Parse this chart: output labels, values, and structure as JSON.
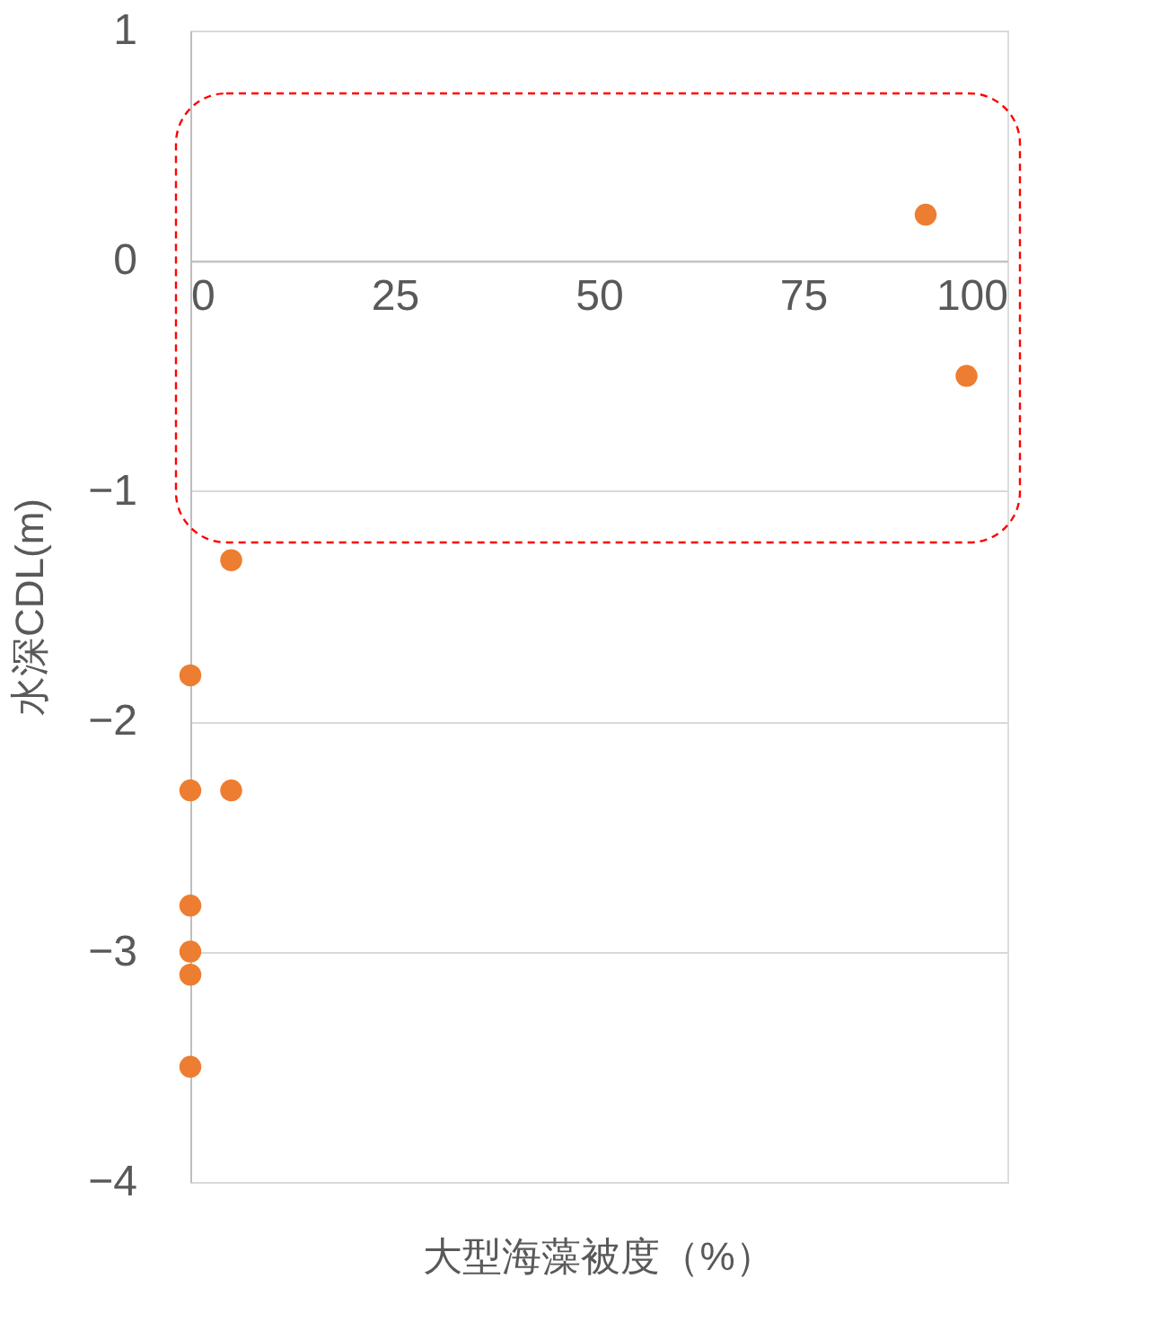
{
  "chart_data": {
    "type": "scatter",
    "xlabel": "大型海藻被度（%）",
    "ylabel": "水深CDL(m)",
    "x": [
      90,
      95,
      5,
      0,
      0,
      5,
      0,
      0,
      0,
      0
    ],
    "series": [
      {
        "color": "#ed7d31",
        "values": [
          0.2,
          -0.5,
          -1.3,
          -1.8,
          -2.3,
          -2.3,
          -2.8,
          -3.0,
          -3.1,
          -3.5
        ]
      }
    ],
    "xlim": [
      0,
      100
    ],
    "xticks": [
      0,
      25,
      50,
      75,
      100
    ],
    "ylim": [
      -4,
      1
    ],
    "yticks": [
      {
        "value": 1,
        "label": "1"
      },
      {
        "value": 0,
        "label": "0"
      },
      {
        "value": -1,
        "label": "−1"
      },
      {
        "value": -2,
        "label": "−2"
      },
      {
        "value": -3,
        "label": "−3"
      },
      {
        "value": -4,
        "label": "−4"
      }
    ],
    "grid": "y",
    "marker": "circle",
    "legend": false
  }
}
